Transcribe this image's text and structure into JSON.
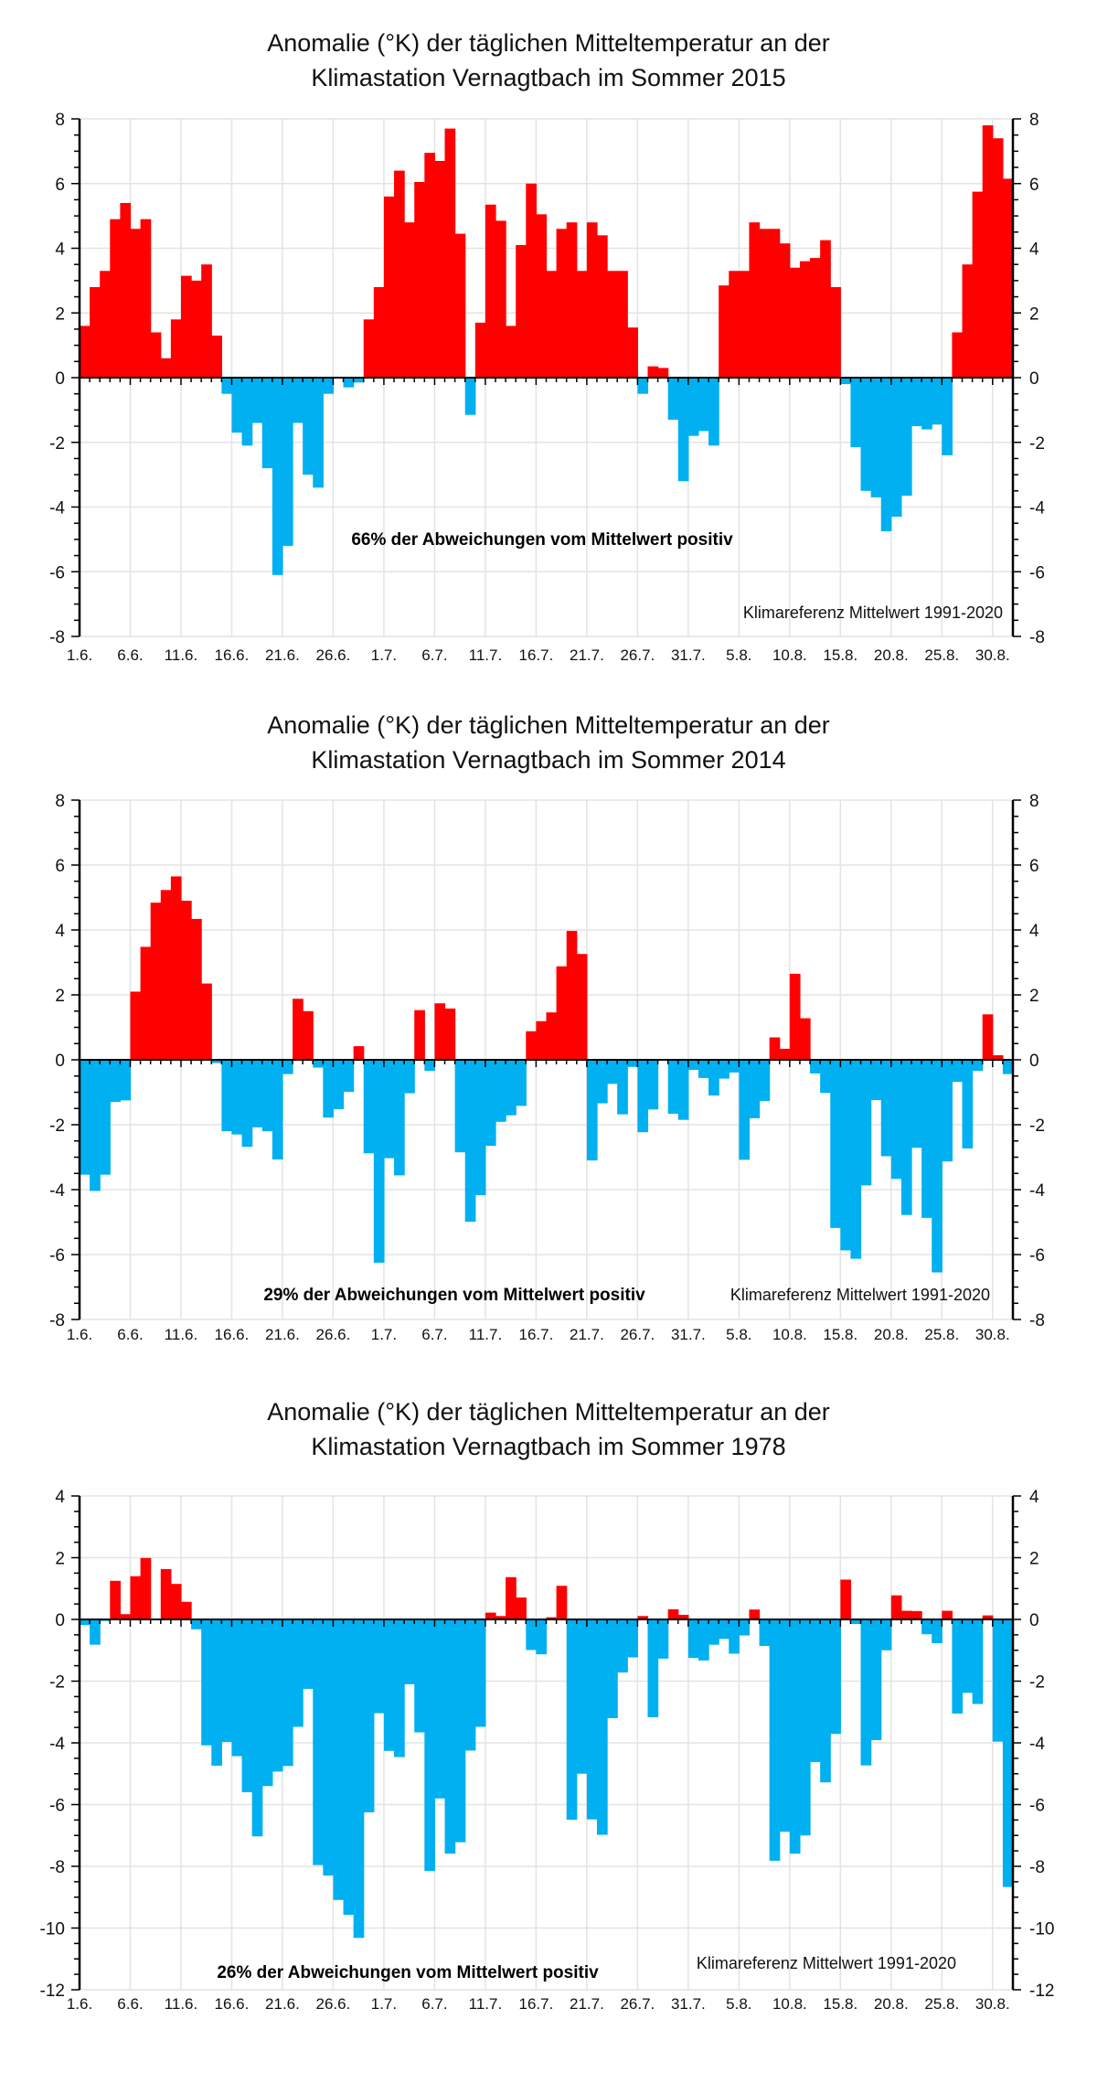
{
  "colors": {
    "positive": "#FF0000",
    "negative": "#00B0F0"
  },
  "chart_data": [
    {
      "type": "bar",
      "title": [
        "Anomalie (°K) der täglichen Mitteltemperatur  an der",
        "Klimastation Vernagtbach  im Sommer 2015"
      ],
      "xlabel": "",
      "ylabel": "",
      "ylim": [
        -8,
        8
      ],
      "ytick_step": 2,
      "x_tick_labels": [
        "1.6.",
        "6.6.",
        "11.6.",
        "16.6.",
        "21.6.",
        "26.6.",
        "1.7.",
        "6.7.",
        "11.7.",
        "16.7.",
        "21.7.",
        "26.7.",
        "31.7.",
        "5.8.",
        "10.8.",
        "15.8.",
        "20.8.",
        "25.8.",
        "30.8."
      ],
      "annotation_share": "66% der Abweichungen vom Mittelwert positiv",
      "annotation_reference": "Klimareferenz Mittelwert 1991-2020",
      "grid": true,
      "values": [
        1.6,
        2.8,
        3.3,
        4.9,
        5.4,
        4.6,
        4.9,
        1.4,
        0.6,
        1.8,
        3.15,
        3.0,
        3.5,
        1.3,
        -0.5,
        -1.7,
        -2.1,
        -1.4,
        -2.8,
        -6.1,
        -5.2,
        -1.4,
        -3.0,
        -3.4,
        -0.5,
        0,
        -0.3,
        -0.15,
        1.8,
        2.8,
        5.6,
        6.4,
        4.8,
        6.05,
        6.95,
        6.7,
        7.7,
        4.45,
        -1.15,
        1.7,
        5.35,
        4.85,
        1.6,
        4.1,
        6.0,
        5.05,
        3.3,
        4.6,
        4.8,
        3.3,
        4.8,
        4.4,
        3.3,
        3.3,
        1.55,
        -0.5,
        0.35,
        0.3,
        -1.3,
        -3.2,
        -1.8,
        -1.65,
        -2.1,
        2.85,
        3.3,
        3.3,
        4.8,
        4.6,
        4.6,
        4.15,
        3.4,
        3.6,
        3.7,
        4.25,
        2.8,
        -0.2,
        -2.15,
        -3.5,
        -3.7,
        -4.75,
        -4.3,
        -3.65,
        -1.5,
        -1.6,
        -1.45,
        -2.4,
        1.4,
        3.5,
        5.75,
        7.8,
        7.4,
        6.15
      ]
    },
    {
      "type": "bar",
      "title": [
        "Anomalie (°K) der täglichen Mitteltemperatur an der",
        "Klimastation Vernagtbach im Sommer 2014"
      ],
      "xlabel": "",
      "ylabel": "",
      "ylim": [
        -8,
        8
      ],
      "ytick_step": 2,
      "x_tick_labels": [
        "1.6.",
        "6.6.",
        "11.6.",
        "16.6.",
        "21.6.",
        "26.6.",
        "1.7.",
        "6.7.",
        "11.7.",
        "16.7.",
        "21.7.",
        "26.7.",
        "31.7.",
        "5.8.",
        "10.8.",
        "15.8.",
        "20.8.",
        "25.8.",
        "30.8."
      ],
      "annotation_share": "29% der Abweichungen vom Mittelwert positiv",
      "annotation_reference": "Klimareferenz Mittelwert 1991-2020",
      "grid": true,
      "values": [
        -3.54,
        -4.04,
        -3.54,
        -1.3,
        -1.25,
        2.1,
        3.48,
        4.84,
        5.23,
        5.65,
        4.9,
        4.34,
        2.35,
        -0.1,
        -2.2,
        -2.3,
        -2.68,
        -2.08,
        -2.2,
        -3.07,
        -0.44,
        1.88,
        1.5,
        -0.24,
        -1.78,
        -1.52,
        -0.99,
        0.42,
        -2.88,
        -6.25,
        -3.03,
        -3.56,
        -1.03,
        1.53,
        -0.34,
        1.74,
        1.58,
        -2.85,
        -4.99,
        -4.17,
        -2.65,
        -1.91,
        -1.71,
        -1.42,
        0.88,
        1.19,
        1.46,
        2.88,
        3.97,
        3.26,
        -3.1,
        -1.34,
        -0.74,
        -1.68,
        -0.22,
        -2.23,
        -1.53,
        -0.02,
        -1.66,
        -1.85,
        -0.31,
        -0.56,
        -1.1,
        -0.58,
        -0.39,
        -3.08,
        -1.8,
        -1.27,
        0.69,
        0.34,
        2.65,
        1.28,
        -0.42,
        -1.02,
        -5.18,
        -5.87,
        -6.13,
        -3.87,
        -1.24,
        -2.97,
        -3.67,
        -4.78,
        -2.71,
        -4.87,
        -6.55,
        -3.13,
        -0.68,
        -2.73,
        -0.34,
        1.4,
        0.14,
        -0.44
      ]
    },
    {
      "type": "bar",
      "title": [
        "Anomalie (°K) der täglichen Mitteltemperatur an der",
        "Klimastation Vernagtbach im Sommer 1978"
      ],
      "xlabel": "",
      "ylabel": "",
      "ylim": [
        -12,
        4
      ],
      "ytick_step": 2,
      "x_tick_labels": [
        "1.6.",
        "6.6.",
        "11.6.",
        "16.6.",
        "21.6.",
        "26.6.",
        "1.7.",
        "6.7.",
        "11.7.",
        "16.7.",
        "21.7.",
        "26.7.",
        "31.7.",
        "5.8.",
        "10.8.",
        "15.8.",
        "20.8.",
        "25.8.",
        "30.8."
      ],
      "annotation_share": "26% der Abweichungen vom Mittelwert positiv",
      "annotation_reference": "Klimareferenz Mittelwert 1991-2020",
      "grid": true,
      "values": [
        -0.18,
        -0.82,
        -0.05,
        1.25,
        0.17,
        1.4,
        1.99,
        0.02,
        1.63,
        1.15,
        0.57,
        -0.32,
        -4.08,
        -4.74,
        -3.97,
        -4.43,
        -5.6,
        -7.03,
        -5.4,
        -4.93,
        -4.75,
        -3.48,
        -2.25,
        -7.96,
        -8.3,
        -9.09,
        -9.57,
        -10.32,
        -6.25,
        -3.04,
        -4.26,
        -4.46,
        -2.1,
        -3.66,
        -8.15,
        -5.8,
        -7.59,
        -7.22,
        -4.25,
        -3.48,
        0.22,
        0.11,
        1.37,
        0.71,
        -0.99,
        -1.13,
        0.07,
        1.09,
        -6.49,
        -5.0,
        -6.48,
        -6.98,
        -3.2,
        -1.72,
        -1.23,
        0.11,
        -3.17,
        -1.27,
        0.33,
        0.15,
        -1.25,
        -1.33,
        -0.82,
        -0.63,
        -1.11,
        -0.52,
        0.32,
        -0.86,
        -7.82,
        -6.88,
        -7.59,
        -7.0,
        -4.62,
        -5.28,
        -3.71,
        1.29,
        -0.15,
        -4.73,
        -3.91,
        -1.0,
        0.78,
        0.28,
        0.27,
        -0.48,
        -0.77,
        0.28,
        -3.05,
        -2.38,
        -2.74,
        0.13,
        -3.96,
        -8.67
      ]
    }
  ]
}
